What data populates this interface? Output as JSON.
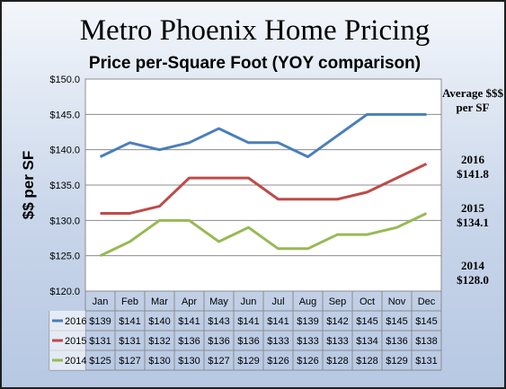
{
  "title": "Metro Phoenix Home Pricing",
  "subtitle": "Price per-Square Foot (YOY comparison)",
  "averages": {
    "heading": "Average $$$ per SF",
    "items": [
      {
        "year": "2016",
        "value": "$141.8"
      },
      {
        "year": "2015",
        "value": "$134.1"
      },
      {
        "year": "2014",
        "value": "$128.0"
      }
    ]
  },
  "chart_data": {
    "type": "line",
    "title": "Metro Phoenix Home Pricing",
    "subtitle": "Price per-Square Foot (YOY comparison)",
    "ylabel": "$$ per SF",
    "xlabel": "",
    "categories": [
      "Jan",
      "Feb",
      "Mar",
      "Apr",
      "May",
      "Jun",
      "Jul",
      "Aug",
      "Sep",
      "Oct",
      "Nov",
      "Dec"
    ],
    "ylim": [
      120,
      150
    ],
    "ytick_step": 5,
    "ytick_labels": [
      "$120.0",
      "$125.0",
      "$130.0",
      "$135.0",
      "$140.0",
      "$145.0",
      "$150.0"
    ],
    "grid": "horizontal",
    "legend": "data-table",
    "series": [
      {
        "name": "2016",
        "color": "#4a7ebb",
        "values": [
          139,
          141,
          140,
          141,
          143,
          141,
          141,
          139,
          142,
          145,
          145,
          145
        ],
        "labels": [
          "$139",
          "$141",
          "$140",
          "$141",
          "$143",
          "$141",
          "$141",
          "$139",
          "$142",
          "$145",
          "$145",
          "$145"
        ]
      },
      {
        "name": "2015",
        "color": "#be4b48",
        "values": [
          131,
          131,
          132,
          136,
          136,
          136,
          133,
          133,
          133,
          134,
          136,
          138
        ],
        "labels": [
          "$131",
          "$131",
          "$132",
          "$136",
          "$136",
          "$136",
          "$133",
          "$133",
          "$133",
          "$134",
          "$136",
          "$138"
        ]
      },
      {
        "name": "2014",
        "color": "#98b954",
        "values": [
          125,
          127,
          130,
          130,
          127,
          129,
          126,
          126,
          128,
          128,
          129,
          131
        ],
        "labels": [
          "$125",
          "$127",
          "$130",
          "$130",
          "$127",
          "$129",
          "$126",
          "$126",
          "$128",
          "$128",
          "$129",
          "$131"
        ]
      }
    ]
  }
}
